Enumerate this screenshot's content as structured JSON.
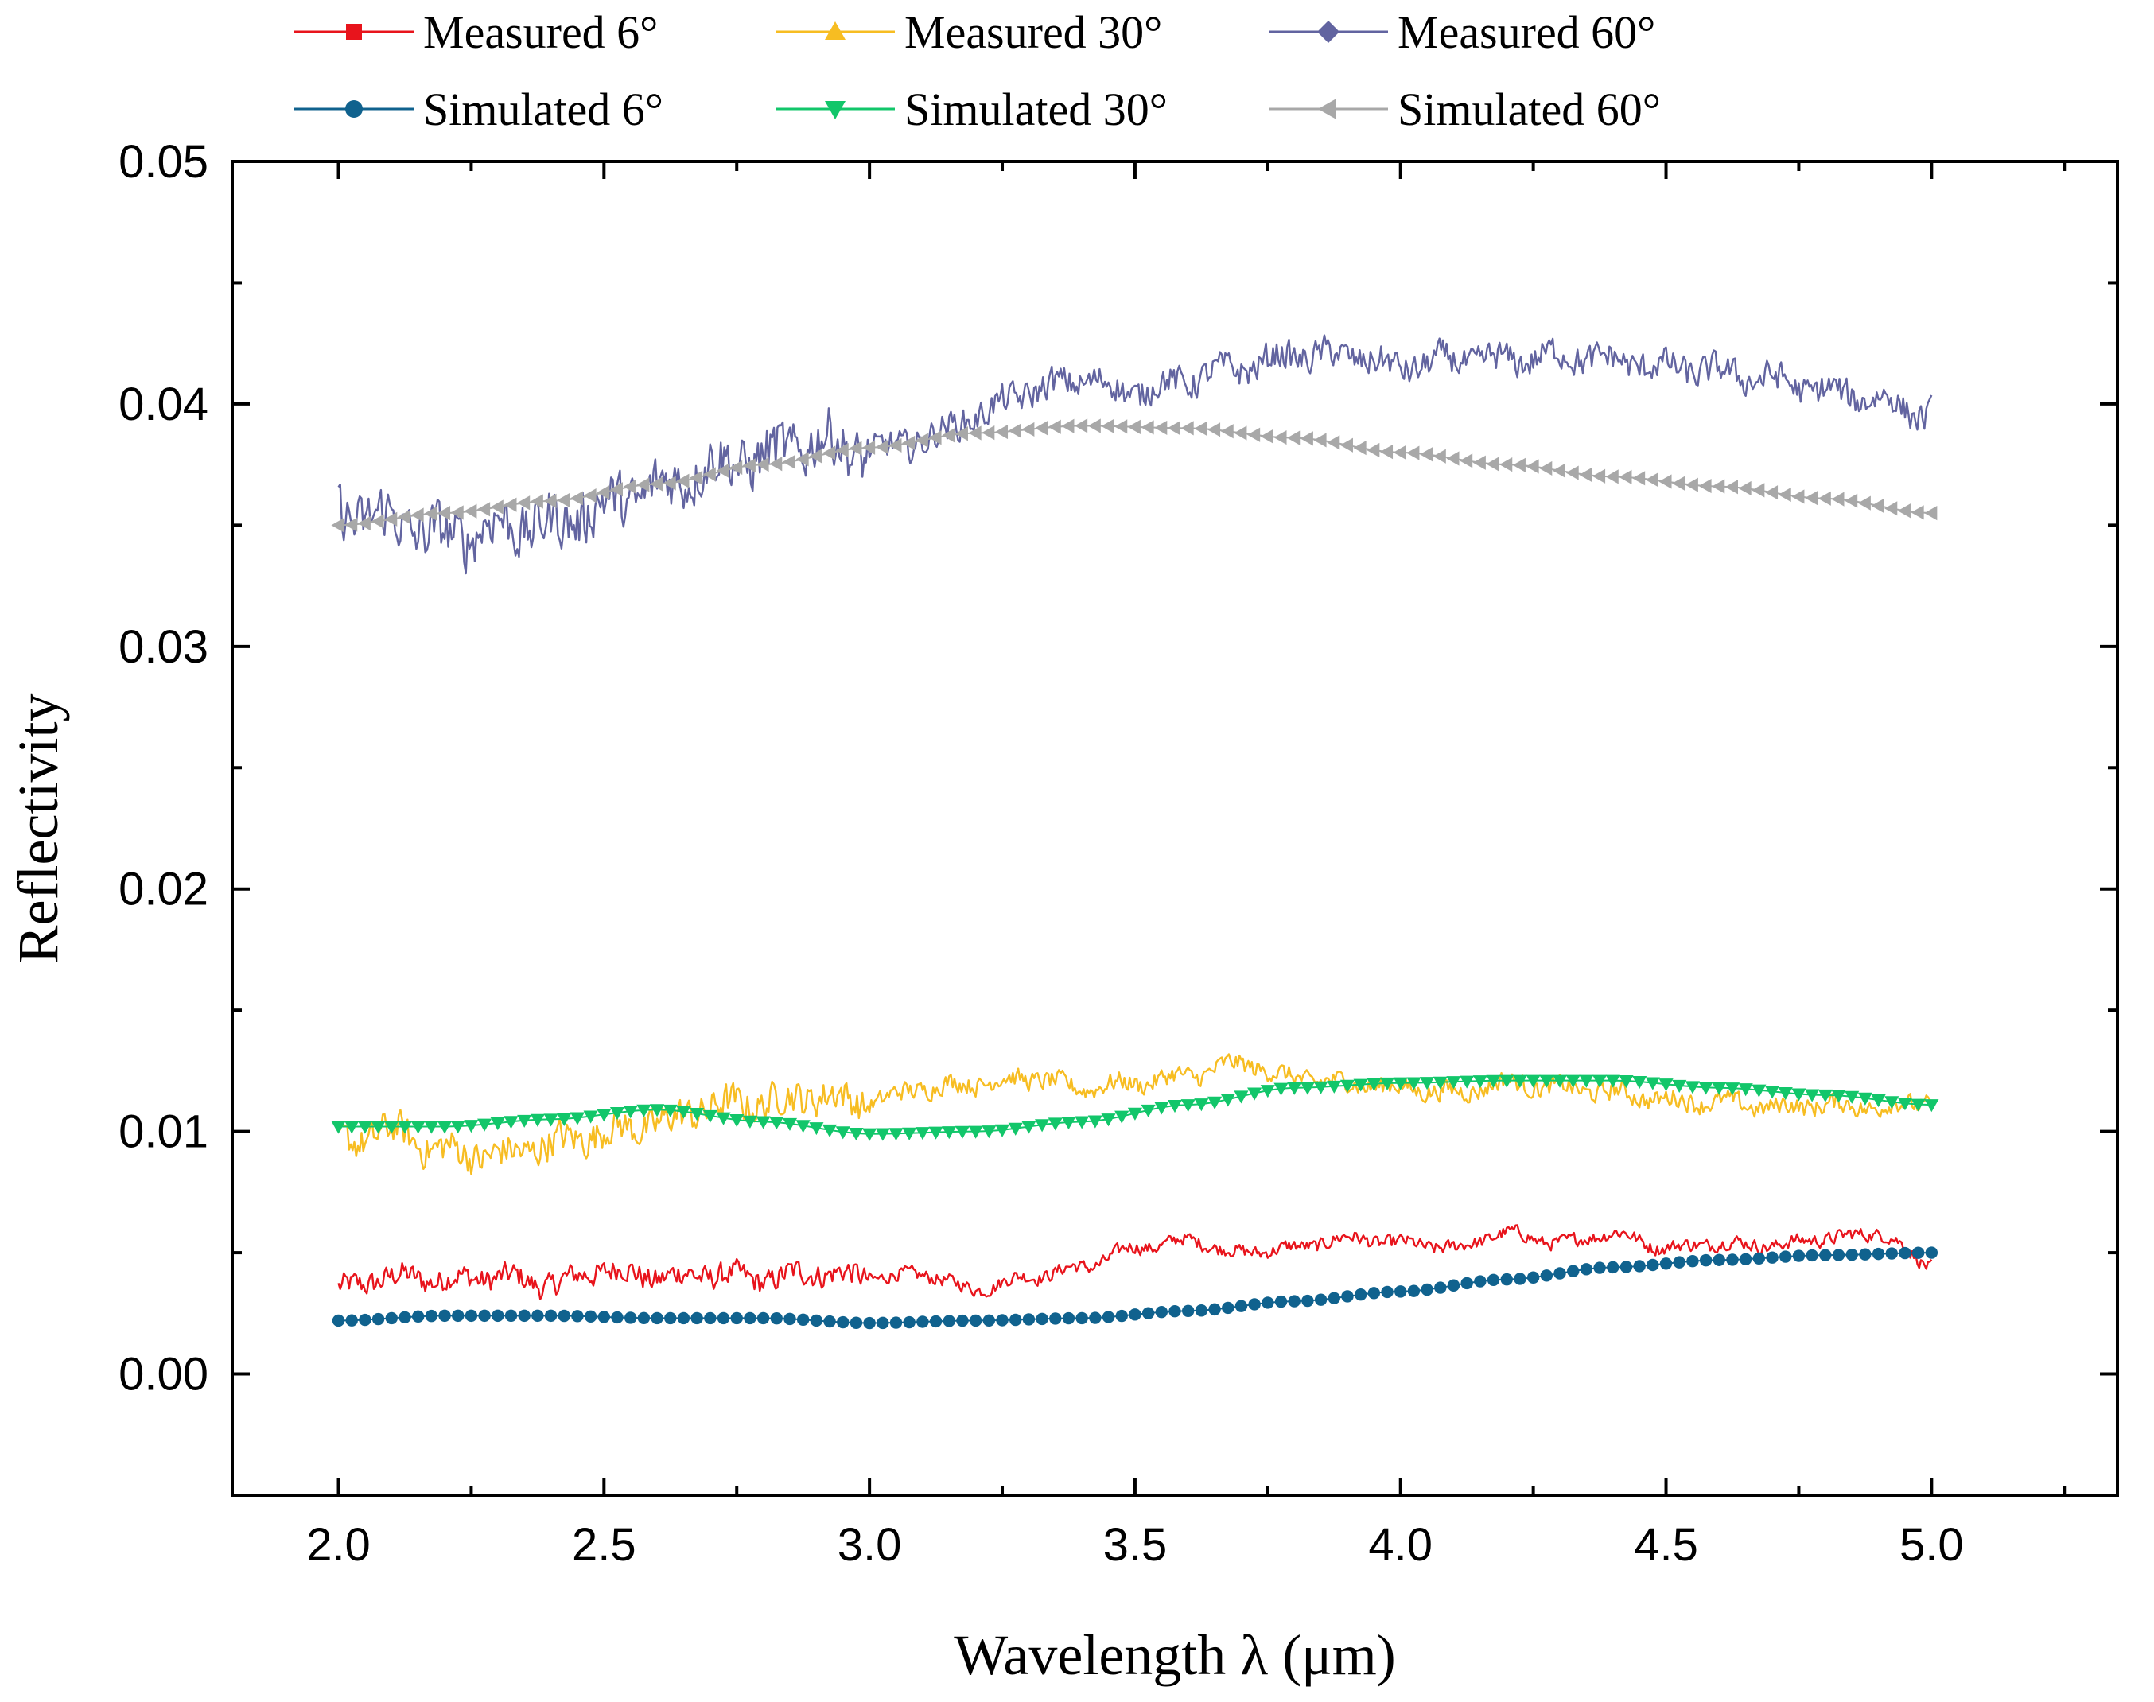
{
  "chart_data": {
    "type": "line",
    "title": "",
    "xlabel": "Wavelength λ (μm)",
    "ylabel": "Reflectivity",
    "xlim": [
      1.8,
      5.35
    ],
    "ylim": [
      -0.005,
      0.05
    ],
    "xticks": [
      "2.0",
      "2.5",
      "3.0",
      "3.5",
      "4.0",
      "4.5",
      "5.0"
    ],
    "yticks": [
      "0.00",
      "0.01",
      "0.02",
      "0.03",
      "0.04",
      "0.05"
    ],
    "grid": false,
    "legend_position": "top",
    "series": [
      {
        "name": "Measured 6°",
        "color": "#e8141c",
        "marker": "square",
        "style": "line",
        "x": [
          2.0,
          2.1,
          2.2,
          2.3,
          2.4,
          2.5,
          2.6,
          2.7,
          2.8,
          2.9,
          3.0,
          3.1,
          3.2,
          3.3,
          3.4,
          3.5,
          3.6,
          3.7,
          3.8,
          3.9,
          4.0,
          4.1,
          4.2,
          4.3,
          4.4,
          4.5,
          4.6,
          4.7,
          4.8,
          4.9,
          5.0
        ],
        "values": [
          0.0035,
          0.004,
          0.0039,
          0.004,
          0.0037,
          0.0043,
          0.004,
          0.0041,
          0.0039,
          0.0042,
          0.004,
          0.0041,
          0.0035,
          0.004,
          0.0044,
          0.0052,
          0.0055,
          0.005,
          0.0052,
          0.0056,
          0.0054,
          0.0052,
          0.0058,
          0.0054,
          0.0058,
          0.0052,
          0.0054,
          0.0053,
          0.0056,
          0.0058,
          0.0045
        ],
        "noise": 0.0007
      },
      {
        "name": "Measured 30°",
        "color": "#f7bd22",
        "marker": "triangle-up",
        "style": "line",
        "x": [
          2.0,
          2.1,
          2.2,
          2.3,
          2.4,
          2.5,
          2.6,
          2.7,
          2.8,
          2.9,
          3.0,
          3.1,
          3.2,
          3.3,
          3.4,
          3.5,
          3.6,
          3.7,
          3.8,
          3.9,
          4.0,
          4.1,
          4.2,
          4.3,
          4.4,
          4.5,
          4.6,
          4.7,
          4.8,
          4.9,
          5.0
        ],
        "values": [
          0.0095,
          0.01,
          0.0092,
          0.009,
          0.0095,
          0.01,
          0.0103,
          0.011,
          0.0112,
          0.0115,
          0.0112,
          0.0118,
          0.012,
          0.0122,
          0.0118,
          0.012,
          0.0123,
          0.0128,
          0.0122,
          0.012,
          0.0118,
          0.0116,
          0.012,
          0.0118,
          0.0116,
          0.0113,
          0.0112,
          0.011,
          0.0111,
          0.011,
          0.0112
        ],
        "noise": 0.001
      },
      {
        "name": "Measured 60°",
        "color": "#6264a0",
        "marker": "diamond",
        "style": "line",
        "x": [
          2.0,
          2.1,
          2.2,
          2.3,
          2.4,
          2.5,
          2.6,
          2.7,
          2.8,
          2.9,
          3.0,
          3.1,
          3.2,
          3.3,
          3.4,
          3.5,
          3.6,
          3.7,
          3.8,
          3.9,
          4.0,
          4.1,
          4.2,
          4.3,
          4.4,
          4.5,
          4.6,
          4.7,
          4.8,
          4.9,
          5.0
        ],
        "values": [
          0.0355,
          0.0352,
          0.0345,
          0.035,
          0.035,
          0.0358,
          0.0365,
          0.0375,
          0.0378,
          0.0385,
          0.038,
          0.0385,
          0.0395,
          0.0405,
          0.041,
          0.0405,
          0.041,
          0.0415,
          0.042,
          0.042,
          0.0415,
          0.0418,
          0.0418,
          0.042,
          0.0418,
          0.0415,
          0.0413,
          0.041,
          0.0405,
          0.0402,
          0.0395
        ],
        "noise": 0.0016
      },
      {
        "name": "Simulated 6°",
        "color": "#10628e",
        "marker": "circle",
        "style": "markers",
        "x": [
          2.0,
          2.2,
          2.4,
          2.6,
          2.8,
          3.0,
          3.2,
          3.4,
          3.6,
          3.8,
          4.0,
          4.2,
          4.4,
          4.6,
          4.8,
          5.0
        ],
        "values": [
          0.0022,
          0.0024,
          0.0024,
          0.0023,
          0.0023,
          0.0021,
          0.0022,
          0.0023,
          0.0026,
          0.003,
          0.0034,
          0.0039,
          0.0044,
          0.0047,
          0.0049,
          0.005
        ]
      },
      {
        "name": "Simulated 30°",
        "color": "#12c66a",
        "marker": "triangle-down",
        "style": "markers",
        "x": [
          2.0,
          2.2,
          2.4,
          2.6,
          2.8,
          3.0,
          3.2,
          3.4,
          3.6,
          3.8,
          4.0,
          4.2,
          4.4,
          4.6,
          4.8,
          5.0
        ],
        "values": [
          0.0102,
          0.0102,
          0.0105,
          0.0109,
          0.0104,
          0.0099,
          0.01,
          0.0104,
          0.0111,
          0.0118,
          0.012,
          0.0121,
          0.0121,
          0.0118,
          0.0115,
          0.0111
        ]
      },
      {
        "name": "Simulated 60°",
        "color": "#a8a8a8",
        "marker": "triangle-left",
        "style": "markers",
        "x": [
          2.0,
          2.2,
          2.4,
          2.6,
          2.8,
          3.0,
          3.2,
          3.4,
          3.6,
          3.8,
          4.0,
          4.2,
          4.4,
          4.6,
          4.8,
          5.0
        ],
        "values": [
          0.035,
          0.0355,
          0.036,
          0.0367,
          0.0375,
          0.0382,
          0.0388,
          0.0391,
          0.039,
          0.0386,
          0.038,
          0.0375,
          0.037,
          0.0366,
          0.0361,
          0.0355
        ]
      }
    ]
  }
}
